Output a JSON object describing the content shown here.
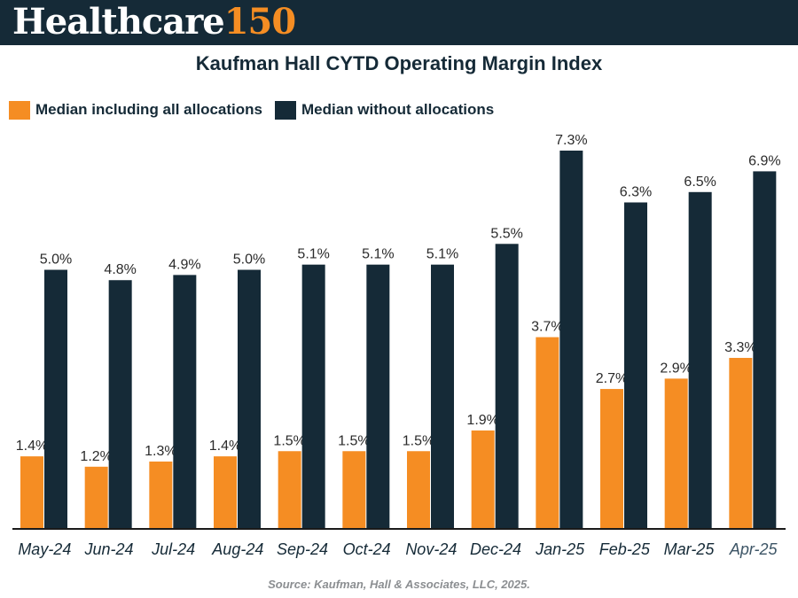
{
  "branding": {
    "logo_word": "Healthcare",
    "logo_number": "150",
    "banner_color": "#152a37",
    "accent_color": "#f58d23"
  },
  "source_text": "Source: Kaufman, Hall & Associates, LLC, 2025.",
  "chart_data": {
    "type": "bar",
    "title": "Kaufman Hall CYTD Operating Margin Index",
    "xlabel": "",
    "ylabel": "",
    "ylim": [
      0,
      7.3
    ],
    "grid": false,
    "legend_position": "top-left",
    "categories": [
      "May-24",
      "Jun-24",
      "Jul-24",
      "Aug-24",
      "Sep-24",
      "Oct-24",
      "Nov-24",
      "Dec-24",
      "Jan-25",
      "Feb-25",
      "Mar-25",
      "Apr-25"
    ],
    "series": [
      {
        "name": "Median including all allocations",
        "color": "#f58d23",
        "values": [
          1.4,
          1.2,
          1.3,
          1.4,
          1.5,
          1.5,
          1.5,
          1.9,
          3.7,
          2.7,
          2.9,
          3.3
        ],
        "labels": [
          "1.4%",
          "1.2%",
          "1.3%",
          "1.4%",
          "1.5%",
          "1.5%",
          "1.5%",
          "1.9%",
          "3.7%",
          "2.7%",
          "2.9%",
          "3.3%"
        ]
      },
      {
        "name": "Median without allocations",
        "color": "#152a37",
        "values": [
          5.0,
          4.8,
          4.9,
          5.0,
          5.1,
          5.1,
          5.1,
          5.5,
          7.3,
          6.3,
          6.5,
          6.9
        ],
        "labels": [
          "5.0%",
          "4.8%",
          "4.9%",
          "5.0%",
          "5.1%",
          "5.1%",
          "5.1%",
          "5.5%",
          "7.3%",
          "6.3%",
          "6.5%",
          "6.9%"
        ]
      }
    ]
  }
}
